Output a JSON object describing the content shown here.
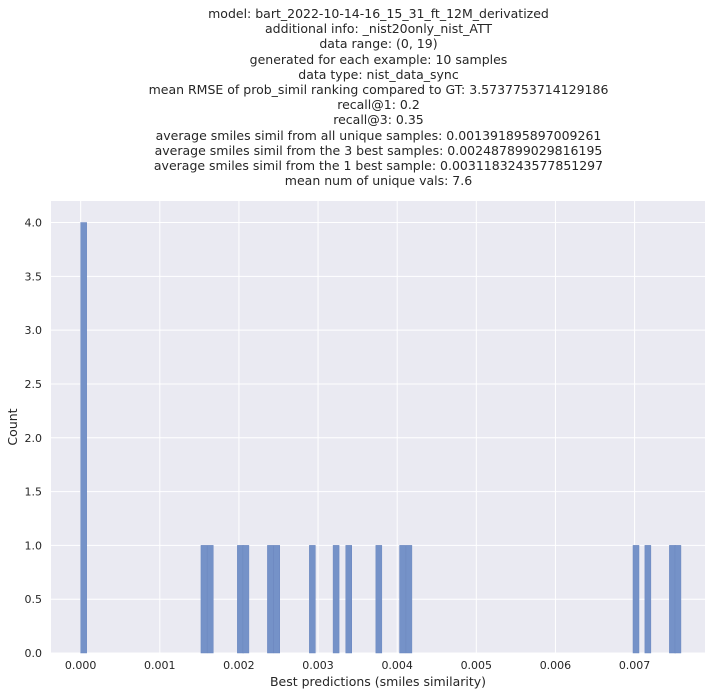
{
  "chart_data": {
    "type": "bar",
    "title_lines": [
      "model: bart_2022-10-14-16_15_31_ft_12M_derivatized",
      "additional info: _nist20only_nist_ATT",
      "data range: (0, 19)",
      "generated for each example: 10 samples",
      "data type: nist_data_sync",
      "mean RMSE of prob_simil ranking compared to GT: 3.5737753714129186",
      "recall@1: 0.2",
      "recall@3: 0.35",
      "average smiles simil from all unique samples: 0.001391895897009261",
      "average smiles simil from the 3 best samples: 0.002487899029816195",
      "average smiles simil from the 1 best sample: 0.0031183243577851297",
      "mean num of unique vals: 7.6"
    ],
    "xlabel": "Best predictions (smiles similarity)",
    "ylabel": "Count",
    "xlim": [
      -0.000375,
      0.00789
    ],
    "ylim": [
      0,
      4.2
    ],
    "x_ticks": [
      "0.000",
      "0.001",
      "0.002",
      "0.003",
      "0.004",
      "0.005",
      "0.006",
      "0.007"
    ],
    "y_ticks": [
      "0.0",
      "0.5",
      "1.0",
      "1.5",
      "2.0",
      "2.5",
      "3.0",
      "3.5",
      "4.0"
    ],
    "bin_width": 7.58e-05,
    "bars": [
      {
        "x": 0.0,
        "count": 4
      },
      {
        "x": 0.00152,
        "count": 1
      },
      {
        "x": 0.0016,
        "count": 1
      },
      {
        "x": 0.00198,
        "count": 1
      },
      {
        "x": 0.00205,
        "count": 1
      },
      {
        "x": 0.00236,
        "count": 1
      },
      {
        "x": 0.00244,
        "count": 1
      },
      {
        "x": 0.00289,
        "count": 1
      },
      {
        "x": 0.00319,
        "count": 1
      },
      {
        "x": 0.00335,
        "count": 1
      },
      {
        "x": 0.00373,
        "count": 1
      },
      {
        "x": 0.00403,
        "count": 1
      },
      {
        "x": 0.00411,
        "count": 1
      },
      {
        "x": 0.00698,
        "count": 1
      },
      {
        "x": 0.00713,
        "count": 1
      },
      {
        "x": 0.00744,
        "count": 1
      },
      {
        "x": 0.00751,
        "count": 1
      }
    ],
    "grid": true,
    "colors": {
      "bar": "#7592c8",
      "bar_edge": "#6a87bf",
      "plot_bg": "#eaeaf2",
      "grid": "#ffffff"
    }
  }
}
